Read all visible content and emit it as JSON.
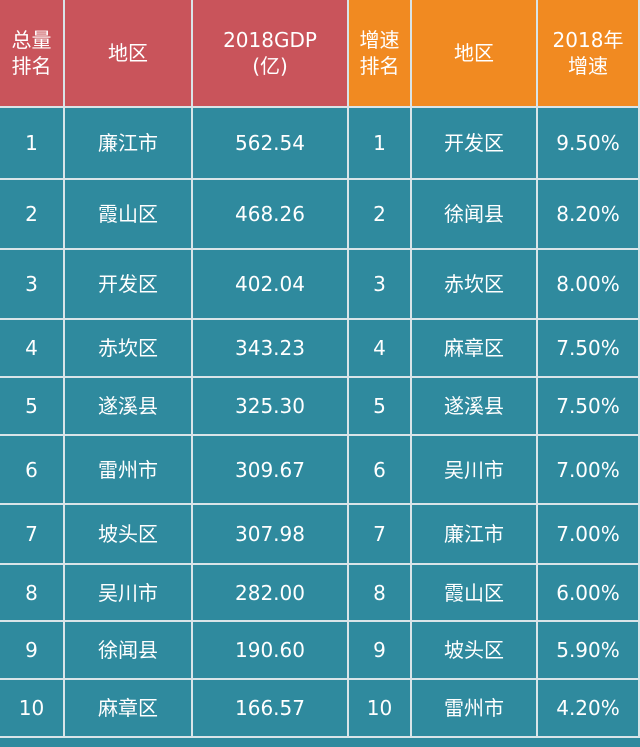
{
  "table": {
    "header": [
      "总量\n排名",
      "地区",
      "2018GDP\n(亿)",
      "增速\n排名",
      "地区",
      "2018年\n增速"
    ],
    "rows": [
      [
        "1",
        "廉江市",
        "562.54",
        "1",
        "开发区",
        "9.50%"
      ],
      [
        "2",
        "霞山区",
        "468.26",
        "2",
        "徐闻县",
        "8.20%"
      ],
      [
        "3",
        "开发区",
        "402.04",
        "3",
        "赤坎区",
        "8.00%"
      ],
      [
        "4",
        "赤坎区",
        "343.23",
        "4",
        "麻章区",
        "7.50%"
      ],
      [
        "5",
        "遂溪县",
        "325.30",
        "5",
        "遂溪县",
        "7.50%"
      ],
      [
        "6",
        "雷州市",
        "309.67",
        "6",
        "吴川市",
        "7.00%"
      ],
      [
        "7",
        "坡头区",
        "307.98",
        "7",
        "廉江市",
        "7.00%"
      ],
      [
        "8",
        "吴川市",
        "282.00",
        "8",
        "霞山区",
        "6.00%"
      ],
      [
        "9",
        "徐闻县",
        "190.60",
        "9",
        "坡头区",
        "5.90%"
      ],
      [
        "10",
        "麻章区",
        "166.57",
        "10",
        "雷州市",
        "4.20%"
      ]
    ]
  }
}
